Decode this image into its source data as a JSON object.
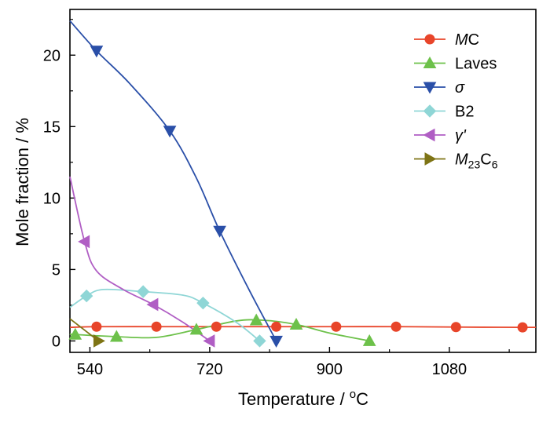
{
  "chart_data": {
    "type": "line",
    "xlabel": "Temperature / °C",
    "ylabel": "Mole fraction / %",
    "xlim": [
      510,
      1210
    ],
    "ylim": [
      -0.8,
      23.2
    ],
    "xticks": [
      540,
      720,
      900,
      1080
    ],
    "yticks": [
      0,
      5,
      10,
      15,
      20
    ],
    "legend_position": "top-right",
    "series": [
      {
        "name": "MC",
        "name_parts": [
          {
            "t": "M",
            "italic": true
          },
          {
            "t": "C"
          }
        ],
        "color": "#e8452a",
        "marker": "circle",
        "x": [
          550,
          640,
          730,
          820,
          910,
          1000,
          1090,
          1190
        ],
        "y": [
          1.0,
          1.0,
          1.0,
          1.0,
          1.0,
          1.0,
          0.97,
          0.95
        ],
        "curve_x": [
          510,
          550,
          640,
          730,
          820,
          910,
          1000,
          1090,
          1190,
          1210
        ],
        "curve_y": [
          0.95,
          1.0,
          1.0,
          1.0,
          1.0,
          1.0,
          1.0,
          0.97,
          0.95,
          0.95
        ]
      },
      {
        "name": "Laves",
        "name_parts": [
          {
            "t": "Laves"
          }
        ],
        "color": "#6dc14a",
        "marker": "triangle-up",
        "x": [
          518,
          580,
          700,
          790,
          850,
          960
        ],
        "y": [
          0.45,
          0.3,
          0.8,
          1.45,
          1.15,
          0.0
        ],
        "curve_x": [
          510,
          518,
          580,
          640,
          700,
          760,
          800,
          850,
          900,
          960
        ],
        "curve_y": [
          0.5,
          0.45,
          0.3,
          0.25,
          0.8,
          1.4,
          1.45,
          1.15,
          0.55,
          0.0
        ]
      },
      {
        "name": "σ",
        "name_parts": [
          {
            "t": "σ",
            "italic": true
          }
        ],
        "color": "#2a4fa8",
        "marker": "triangle-down",
        "x": [
          550,
          660,
          735,
          820
        ],
        "y": [
          20.3,
          14.7,
          7.7,
          0.0
        ],
        "curve_x": [
          510,
          550,
          600,
          660,
          700,
          735,
          780,
          820
        ],
        "curve_y": [
          22.4,
          20.3,
          18.0,
          14.7,
          11.4,
          7.7,
          3.5,
          0.0
        ]
      },
      {
        "name": "B2",
        "name_parts": [
          {
            "t": "B2"
          }
        ],
        "color": "#8fd6d6",
        "marker": "diamond",
        "x": [
          535,
          620,
          710,
          795
        ],
        "y": [
          3.15,
          3.45,
          2.65,
          0.0
        ],
        "curve_x": [
          510,
          535,
          560,
          620,
          680,
          710,
          760,
          795
        ],
        "curve_y": [
          2.35,
          3.15,
          3.6,
          3.45,
          3.2,
          2.65,
          1.3,
          0.0
        ]
      },
      {
        "name": "γ'",
        "name_parts": [
          {
            "t": "γ'",
            "italic": true
          }
        ],
        "color": "#b05ec4",
        "marker": "triangle-left",
        "x": [
          532,
          635,
          720
        ],
        "y": [
          6.95,
          2.55,
          0.0
        ],
        "curve_x": [
          510,
          532,
          550,
          590,
          635,
          680,
          720
        ],
        "curve_y": [
          11.5,
          6.95,
          4.9,
          3.6,
          2.55,
          1.3,
          0.0
        ]
      },
      {
        "name": "M23C6",
        "name_parts": [
          {
            "t": "M",
            "italic": true
          },
          {
            "t": "23",
            "sub": true
          },
          {
            "t": "C"
          },
          {
            "t": "6",
            "sub": true
          }
        ],
        "color": "#7e7415",
        "marker": "triangle-right",
        "x": [
          553
        ],
        "y": [
          0.0
        ],
        "curve_x": [
          510,
          553
        ],
        "curve_y": [
          1.55,
          0.0
        ]
      }
    ]
  }
}
